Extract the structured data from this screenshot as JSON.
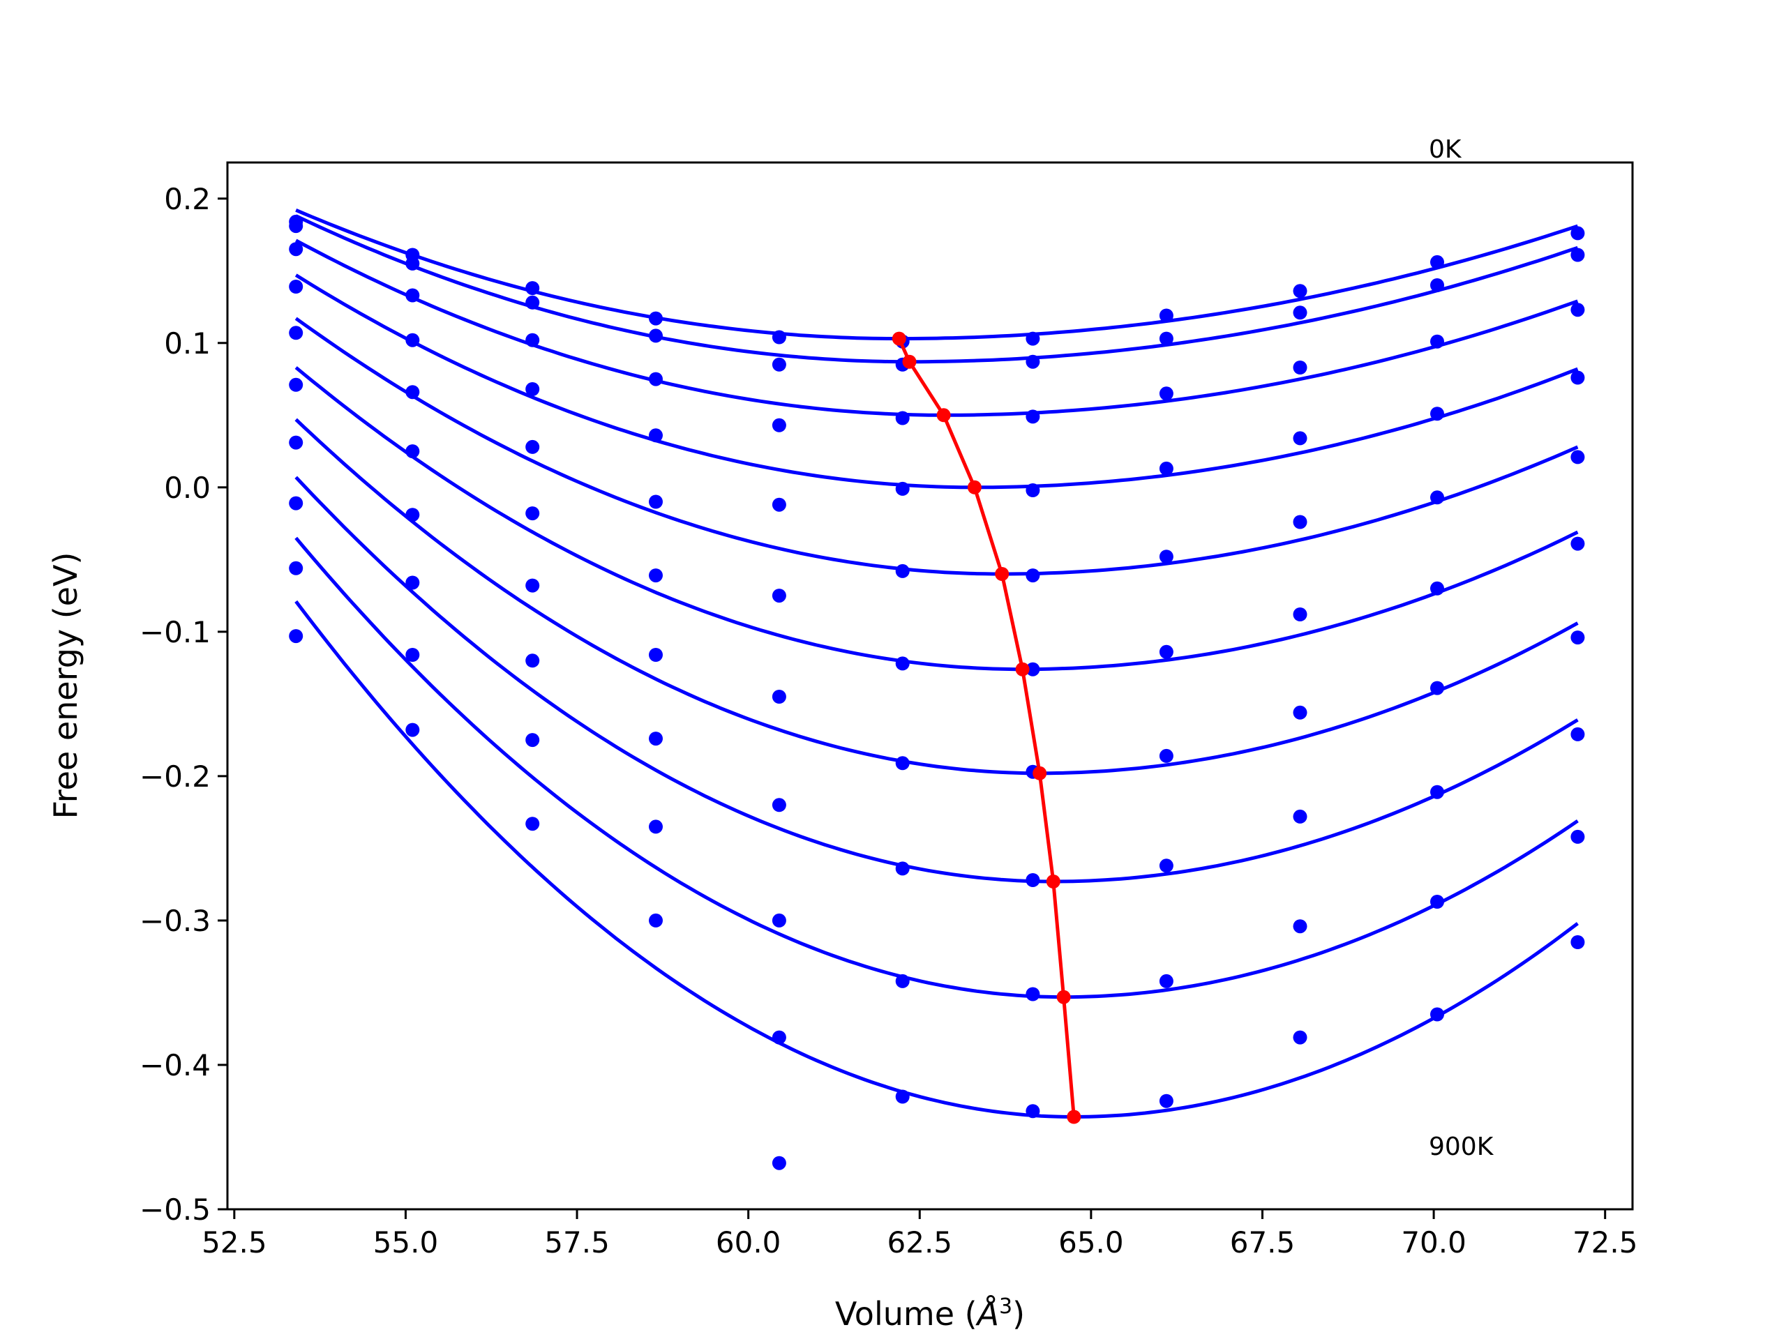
{
  "chart_data": {
    "type": "line",
    "xlabel": "Volume (Å³)",
    "xlabel_parts": {
      "prefix": "Volume (",
      "unit_base": "Å",
      "unit_sup": "3",
      "suffix": ")"
    },
    "ylabel": "Free energy (eV)",
    "xlim": [
      52.4,
      72.9
    ],
    "ylim": [
      -0.5,
      0.225
    ],
    "xticks": [
      52.5,
      55.0,
      57.5,
      60.0,
      62.5,
      65.0,
      67.5,
      70.0,
      72.5
    ],
    "xtick_labels": [
      "52.5",
      "55.0",
      "57.5",
      "60.0",
      "62.5",
      "65.0",
      "67.5",
      "70.0",
      "72.5"
    ],
    "yticks": [
      0.2,
      0.1,
      0.0,
      -0.1,
      -0.2,
      -0.3,
      -0.4,
      -0.5
    ],
    "ytick_labels": [
      "0.2",
      "0.1",
      "0.0",
      "−0.1",
      "−0.2",
      "−0.3",
      "−0.4",
      "−0.5"
    ],
    "grid": false,
    "annotations": [
      {
        "text": "0K",
        "x": 70.1,
        "y": 0.23
      },
      {
        "text": "900K",
        "x": 70.1,
        "y": -0.46
      }
    ],
    "colors": {
      "fit_curves": "#0000ff",
      "points": "#0000ff",
      "minima": "#ff0000"
    },
    "volumes": [
      53.4,
      55.1,
      56.85,
      58.65,
      60.45,
      62.25,
      64.15,
      66.1,
      68.05,
      70.05,
      72.1
    ],
    "series": [
      {
        "values": [
          0.184,
          0.161,
          0.138,
          0.117,
          0.104,
          0.101,
          0.103,
          0.119,
          0.136,
          0.156,
          0.176
        ],
        "fit": {
          "x_start": 53.4,
          "x_end": 72.1,
          "y_start": 0.192,
          "v_min": 62.2,
          "y_min": 0.103,
          "y_end": 0.181
        }
      },
      {
        "values": [
          0.181,
          0.155,
          0.128,
          0.105,
          0.085,
          0.085,
          0.087,
          0.103,
          0.121,
          0.14,
          0.161
        ],
        "fit": {
          "x_start": 53.4,
          "x_end": 72.1,
          "y_start": 0.188,
          "v_min": 62.35,
          "y_min": 0.087,
          "y_end": 0.166
        }
      },
      {
        "values": [
          0.165,
          0.133,
          0.102,
          0.075,
          0.043,
          0.048,
          0.049,
          0.065,
          0.083,
          0.101,
          0.123
        ],
        "fit": {
          "x_start": 53.4,
          "x_end": 72.1,
          "y_start": 0.171,
          "v_min": 62.85,
          "y_min": 0.05,
          "y_end": 0.129
        }
      },
      {
        "values": [
          0.139,
          0.102,
          0.068,
          0.036,
          -0.012,
          -0.001,
          -0.002,
          0.013,
          0.034,
          0.051,
          0.076
        ],
        "fit": {
          "x_start": 53.4,
          "x_end": 72.1,
          "y_start": 0.147,
          "v_min": 63.3,
          "y_min": 0.0,
          "y_end": 0.082
        }
      },
      {
        "values": [
          0.107,
          0.066,
          0.028,
          -0.01,
          -0.075,
          -0.058,
          -0.061,
          -0.048,
          -0.024,
          -0.007,
          0.021
        ],
        "fit": {
          "x_start": 53.4,
          "x_end": 72.1,
          "y_start": 0.117,
          "v_min": 63.7,
          "y_min": -0.06,
          "y_end": 0.028
        }
      },
      {
        "values": [
          0.071,
          0.025,
          -0.018,
          -0.061,
          -0.145,
          -0.122,
          -0.126,
          -0.114,
          -0.088,
          -0.07,
          -0.039
        ],
        "fit": {
          "x_start": 53.4,
          "x_end": 72.1,
          "y_start": 0.083,
          "v_min": 64.0,
          "y_min": -0.126,
          "y_end": -0.031
        }
      },
      {
        "values": [
          0.031,
          -0.019,
          -0.068,
          -0.116,
          -0.22,
          -0.191,
          -0.197,
          -0.186,
          -0.156,
          -0.139,
          -0.104
        ],
        "fit": {
          "x_start": 53.4,
          "x_end": 72.1,
          "y_start": 0.047,
          "v_min": 64.25,
          "y_min": -0.198,
          "y_end": -0.094
        }
      },
      {
        "values": [
          -0.011,
          -0.066,
          -0.12,
          -0.174,
          -0.3,
          -0.264,
          -0.272,
          -0.262,
          -0.228,
          -0.211,
          -0.171
        ],
        "fit": {
          "x_start": 53.4,
          "x_end": 72.1,
          "y_start": 0.007,
          "v_min": 64.45,
          "y_min": -0.273,
          "y_end": -0.161
        }
      },
      {
        "values": [
          -0.056,
          -0.116,
          -0.175,
          -0.235,
          -0.381,
          -0.342,
          -0.351,
          -0.342,
          -0.304,
          -0.287,
          -0.242
        ],
        "fit": {
          "x_start": 53.4,
          "x_end": 72.1,
          "y_start": -0.035,
          "v_min": 64.6,
          "y_min": -0.353,
          "y_end": -0.231
        }
      },
      {
        "values": [
          -0.103,
          -0.168,
          -0.233,
          -0.3,
          -0.468,
          -0.422,
          -0.432,
          -0.425,
          -0.381,
          -0.365,
          -0.315
        ],
        "fit": {
          "x_start": 53.4,
          "x_end": 72.1,
          "y_start": -0.079,
          "v_min": 64.75,
          "y_min": -0.436,
          "y_end": -0.302
        }
      }
    ],
    "minima": {
      "x": [
        62.2,
        62.35,
        62.85,
        63.3,
        63.7,
        64.0,
        64.25,
        64.45,
        64.6,
        64.75
      ],
      "y": [
        0.103,
        0.087,
        0.05,
        0.0,
        -0.06,
        -0.126,
        -0.198,
        -0.273,
        -0.353,
        -0.436
      ]
    }
  }
}
